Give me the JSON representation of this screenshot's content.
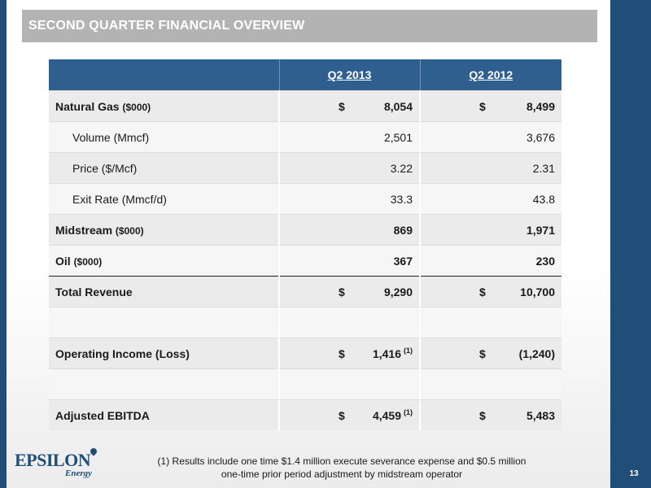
{
  "header": {
    "title": "SECOND QUARTER FINANCIAL OVERVIEW"
  },
  "table": {
    "columns": [
      "",
      "Q2 2013",
      "Q2 2012"
    ],
    "rows": [
      {
        "label": "Natural Gas",
        "unit": "($000)",
        "q2_2013_prefix": "$",
        "q2_2013": "8,054",
        "q2_2012_prefix": "$",
        "q2_2012": "8,499"
      },
      {
        "label": "Volume (Mmcf)",
        "q2_2013": "2,501",
        "q2_2012": "3,676"
      },
      {
        "label": "Price ($/Mcf)",
        "q2_2013": "3.22",
        "q2_2012": "2.31"
      },
      {
        "label": "Exit Rate (Mmcf/d)",
        "q2_2013": "33.3",
        "q2_2012": "43.8"
      },
      {
        "label": "Midstream",
        "unit": "($000)",
        "q2_2013": "869",
        "q2_2012": "1,971"
      },
      {
        "label": "Oil",
        "unit": "($000)",
        "q2_2013": "367",
        "q2_2012": "230"
      },
      {
        "label": "Total Revenue",
        "q2_2013_prefix": "$",
        "q2_2013": "9,290",
        "q2_2012_prefix": "$",
        "q2_2012": "10,700"
      },
      {
        "label": "",
        "q2_2013": "",
        "q2_2012": ""
      },
      {
        "label": "Operating Income (Loss)",
        "q2_2013_prefix": "$",
        "q2_2013": "1,416",
        "q2_2013_note": "(1)",
        "q2_2012_prefix": "$",
        "q2_2012": "(1,240)"
      },
      {
        "label": "",
        "q2_2013": "",
        "q2_2012": ""
      },
      {
        "label": "Adjusted EBITDA",
        "q2_2013_prefix": "$",
        "q2_2013": "4,459",
        "q2_2013_note": "(1)",
        "q2_2012_prefix": "$",
        "q2_2012": "5,483"
      }
    ]
  },
  "footnote": {
    "line1": "(1) Results include one time $1.4 million execute severance expense and $0.5 million",
    "line2": "one-time prior period adjustment by midstream operator"
  },
  "logo": {
    "main": "EPSILON",
    "sub": "Energy"
  },
  "page_number": "13",
  "colors": {
    "accent": "#1f4e79",
    "header_fill": "#2e5f8e",
    "title_bar": "#b3b3b3"
  }
}
